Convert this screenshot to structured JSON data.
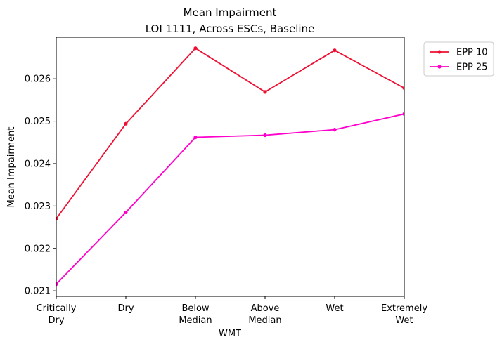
{
  "chart_data": {
    "type": "line",
    "title": "Mean Impairment",
    "subtitle": "LOI 1111, Across ESCs, Baseline",
    "xlabel": "WMT",
    "ylabel": "Mean Impairment",
    "categories": [
      [
        "Critically",
        "Dry"
      ],
      [
        "Dry"
      ],
      [
        "Below",
        "Median"
      ],
      [
        "Above",
        "Median"
      ],
      [
        "Wet"
      ],
      [
        "Extremely",
        "Wet"
      ]
    ],
    "ylim": [
      0.02087,
      0.02698
    ],
    "yticks": [
      0.021,
      0.022,
      0.023,
      0.024,
      0.025,
      0.026
    ],
    "ytick_labels": [
      "0.021",
      "0.022",
      "0.023",
      "0.024",
      "0.025",
      "0.026"
    ],
    "grid": false,
    "legend_position": "outside-top-right",
    "series": [
      {
        "name": "EPP 10",
        "color": "#ee1133",
        "values": [
          0.0227,
          0.02494,
          0.02672,
          0.02569,
          0.02667,
          0.02578
        ]
      },
      {
        "name": "EPP 25",
        "color": "#ff00cc",
        "values": [
          0.02116,
          0.02285,
          0.02462,
          0.02467,
          0.0248,
          0.02517
        ]
      }
    ]
  }
}
